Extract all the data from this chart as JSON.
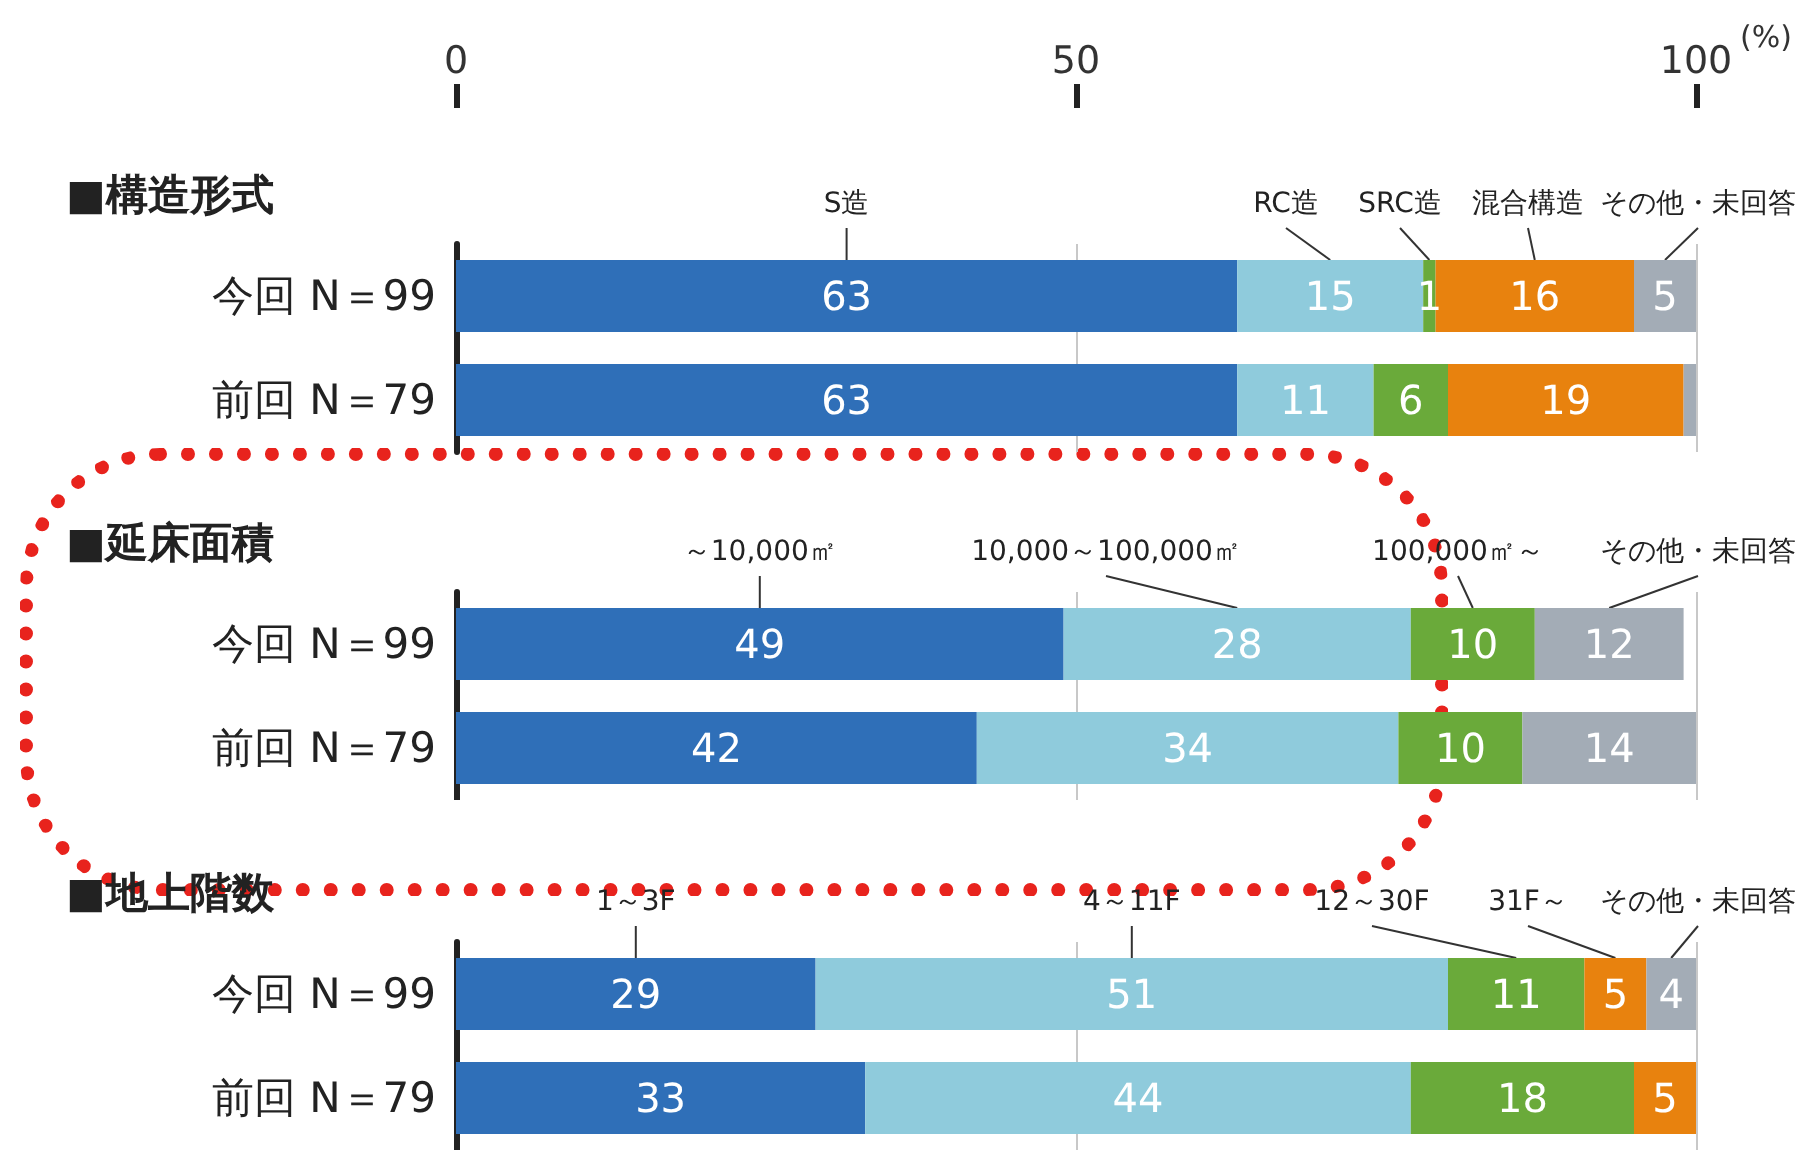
{
  "chart_data": [
    {
      "type": "bar",
      "orientation": "horizontal",
      "stacked": true,
      "title": "■構造形式",
      "xlabel": "(%)",
      "categories": [
        "今回 N＝99",
        "前回 N＝79"
      ],
      "xlim": [
        0,
        100
      ],
      "xticks": [
        0,
        50,
        100
      ],
      "grid": "x",
      "legend": false,
      "series": [
        {
          "name": "S造",
          "color": "#2f6fb8",
          "values": [
            63,
            63
          ],
          "value_labels": [
            "63",
            "63"
          ]
        },
        {
          "name": "RC造",
          "color": "#8fcbdc",
          "values": [
            15,
            11
          ],
          "value_labels": [
            "15",
            "11"
          ]
        },
        {
          "name": "SRC造",
          "color": "#6aaa3a",
          "values": [
            1,
            6
          ],
          "value_labels": [
            "1",
            "6"
          ]
        },
        {
          "name": "混合構造",
          "color": "#e8820e",
          "values": [
            16,
            19
          ],
          "value_labels": [
            "16",
            "19"
          ]
        },
        {
          "name": "その他・未回答",
          "color": "#a3acb6",
          "values": [
            5,
            1
          ],
          "value_labels": [
            "5",
            null
          ]
        }
      ]
    },
    {
      "type": "bar",
      "orientation": "horizontal",
      "stacked": true,
      "title": "■延床面積",
      "categories": [
        "今回 N＝99",
        "前回 N＝79"
      ],
      "xlim": [
        0,
        100
      ],
      "xticks": [
        0,
        50,
        100
      ],
      "tick_labels": "y",
      "grid": "x",
      "legend": false,
      "series": [
        {
          "name": "～10,000㎡",
          "color": "#2f6fb8",
          "values": [
            49,
            42
          ],
          "value_labels": [
            "49",
            "42"
          ]
        },
        {
          "name": "10,000～100,000㎡",
          "color": "#8fcbdc",
          "values": [
            28,
            34
          ],
          "value_labels": [
            "28",
            "34"
          ]
        },
        {
          "name": "100,000㎡～",
          "color": "#6aaa3a",
          "values": [
            10,
            10
          ],
          "value_labels": [
            "10",
            "10"
          ]
        },
        {
          "name": "その他・未回答",
          "color": "#a3acb6",
          "values": [
            12,
            14
          ],
          "value_labels": [
            "12",
            "14"
          ]
        }
      ]
    },
    {
      "type": "bar",
      "orientation": "horizontal",
      "stacked": true,
      "title": "■地上階数",
      "categories": [
        "今回 N＝99",
        "前回 N＝79"
      ],
      "xlim": [
        0,
        100
      ],
      "xticks": [
        0,
        50,
        100
      ],
      "tick_labels": "y",
      "grid": "x",
      "legend": false,
      "series": [
        {
          "name": "1～3F",
          "color": "#2f6fb8",
          "values": [
            29,
            33
          ],
          "value_labels": [
            "29",
            "33"
          ]
        },
        {
          "name": "4～11F",
          "color": "#8fcbdc",
          "values": [
            51,
            44
          ],
          "value_labels": [
            "51",
            "44"
          ]
        },
        {
          "name": "12～30F",
          "color": "#6aaa3a",
          "values": [
            11,
            18
          ],
          "value_labels": [
            "11",
            "18"
          ]
        },
        {
          "name": "31F～",
          "color": "#e8820e",
          "values": [
            5,
            5
          ],
          "value_labels": [
            "5",
            "5"
          ]
        },
        {
          "name": "その他・未回答",
          "color": "#a3acb6",
          "values": [
            4,
            0
          ],
          "value_labels": [
            "4",
            null
          ]
        }
      ]
    }
  ]
}
